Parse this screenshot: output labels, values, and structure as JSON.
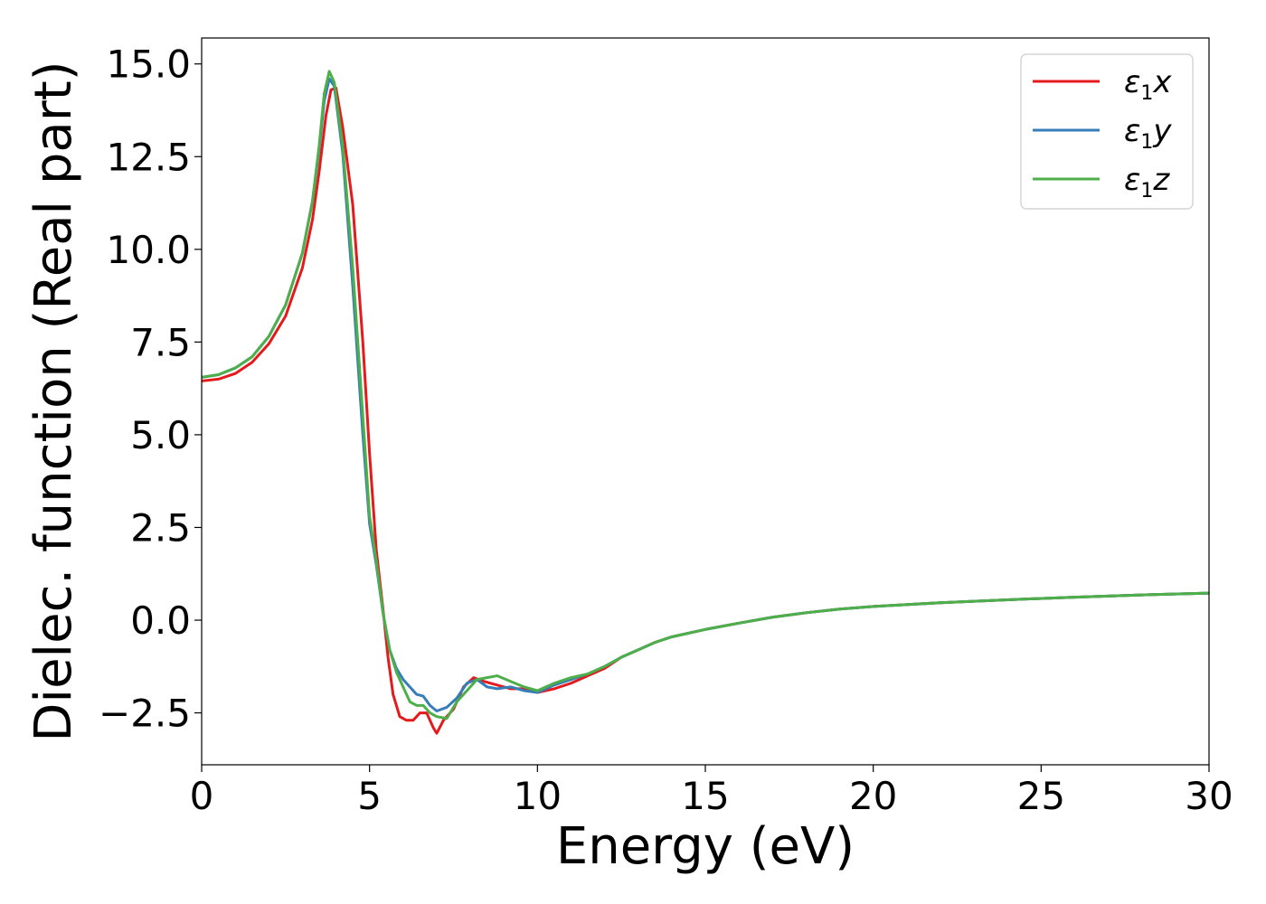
{
  "chart_data": {
    "type": "line",
    "xlabel": "Energy (eV)",
    "ylabel": "Dielec. function (Real part)",
    "xlim": [
      0,
      30
    ],
    "ylim": [
      -3.9,
      15.7
    ],
    "xticks": [
      0,
      5,
      10,
      15,
      20,
      25,
      30
    ],
    "xtick_labels": [
      "0",
      "5",
      "10",
      "15",
      "20",
      "25",
      "30"
    ],
    "yticks": [
      -2.5,
      0.0,
      2.5,
      5.0,
      7.5,
      10.0,
      12.5,
      15.0
    ],
    "ytick_labels": [
      "−2.5",
      "0.0",
      "2.5",
      "5.0",
      "7.5",
      "10.0",
      "12.5",
      "15.0"
    ],
    "grid": false,
    "legend_position": "top-right",
    "series": [
      {
        "name": "ε₁x",
        "legend_main": "ε",
        "legend_sub": "1",
        "legend_var": "x",
        "color": "#e41a1c",
        "points": [
          [
            0,
            6.45
          ],
          [
            0.5,
            6.5
          ],
          [
            1,
            6.65
          ],
          [
            1.5,
            6.95
          ],
          [
            2,
            7.45
          ],
          [
            2.5,
            8.2
          ],
          [
            3,
            9.5
          ],
          [
            3.3,
            10.8
          ],
          [
            3.5,
            12.1
          ],
          [
            3.7,
            13.6
          ],
          [
            3.85,
            14.3
          ],
          [
            4,
            14.35
          ],
          [
            4.2,
            13.3
          ],
          [
            4.5,
            11.2
          ],
          [
            4.8,
            7.5
          ],
          [
            5.0,
            4.5
          ],
          [
            5.2,
            1.9
          ],
          [
            5.4,
            0.3
          ],
          [
            5.55,
            -1.0
          ],
          [
            5.7,
            -2.0
          ],
          [
            5.9,
            -2.6
          ],
          [
            6.1,
            -2.7
          ],
          [
            6.3,
            -2.7
          ],
          [
            6.5,
            -2.5
          ],
          [
            6.7,
            -2.5
          ],
          [
            6.9,
            -2.9
          ],
          [
            7.0,
            -3.05
          ],
          [
            7.2,
            -2.7
          ],
          [
            7.5,
            -2.4
          ],
          [
            7.8,
            -1.8
          ],
          [
            8.1,
            -1.55
          ],
          [
            8.4,
            -1.65
          ],
          [
            8.8,
            -1.75
          ],
          [
            9.2,
            -1.85
          ],
          [
            9.6,
            -1.85
          ],
          [
            10,
            -1.95
          ],
          [
            10.5,
            -1.85
          ],
          [
            11,
            -1.7
          ],
          [
            11.5,
            -1.5
          ],
          [
            12,
            -1.3
          ],
          [
            12.5,
            -1.0
          ],
          [
            13,
            -0.8
          ],
          [
            13.5,
            -0.6
          ],
          [
            14,
            -0.45
          ],
          [
            15,
            -0.25
          ],
          [
            16,
            -0.08
          ],
          [
            17,
            0.08
          ],
          [
            18,
            0.2
          ],
          [
            19,
            0.3
          ],
          [
            20,
            0.37
          ],
          [
            22,
            0.47
          ],
          [
            24,
            0.55
          ],
          [
            26,
            0.62
          ],
          [
            28,
            0.68
          ],
          [
            30,
            0.73
          ]
        ]
      },
      {
        "name": "ε₁y",
        "legend_main": "ε",
        "legend_sub": "1",
        "legend_var": "y",
        "color": "#377eb8",
        "points": [
          [
            0,
            6.55
          ],
          [
            0.5,
            6.62
          ],
          [
            1,
            6.8
          ],
          [
            1.5,
            7.1
          ],
          [
            2,
            7.65
          ],
          [
            2.5,
            8.5
          ],
          [
            3,
            9.9
          ],
          [
            3.3,
            11.3
          ],
          [
            3.5,
            12.7
          ],
          [
            3.65,
            14.0
          ],
          [
            3.8,
            14.6
          ],
          [
            3.95,
            14.4
          ],
          [
            4.2,
            12.6
          ],
          [
            4.5,
            9.0
          ],
          [
            4.8,
            5.0
          ],
          [
            5.0,
            2.6
          ],
          [
            5.2,
            1.5
          ],
          [
            5.4,
            0.2
          ],
          [
            5.6,
            -0.8
          ],
          [
            5.8,
            -1.3
          ],
          [
            6.0,
            -1.6
          ],
          [
            6.2,
            -1.8
          ],
          [
            6.4,
            -2.0
          ],
          [
            6.6,
            -2.05
          ],
          [
            6.8,
            -2.3
          ],
          [
            7.0,
            -2.45
          ],
          [
            7.3,
            -2.35
          ],
          [
            7.6,
            -2.1
          ],
          [
            7.9,
            -1.7
          ],
          [
            8.2,
            -1.6
          ],
          [
            8.5,
            -1.8
          ],
          [
            8.8,
            -1.85
          ],
          [
            9.2,
            -1.8
          ],
          [
            9.6,
            -1.9
          ],
          [
            10,
            -1.95
          ],
          [
            10.5,
            -1.75
          ],
          [
            11,
            -1.6
          ],
          [
            11.5,
            -1.45
          ],
          [
            12,
            -1.25
          ],
          [
            12.5,
            -1.0
          ],
          [
            13,
            -0.8
          ],
          [
            13.5,
            -0.6
          ],
          [
            14,
            -0.45
          ],
          [
            15,
            -0.25
          ],
          [
            16,
            -0.08
          ],
          [
            17,
            0.08
          ],
          [
            18,
            0.2
          ],
          [
            19,
            0.3
          ],
          [
            20,
            0.37
          ],
          [
            22,
            0.47
          ],
          [
            24,
            0.55
          ],
          [
            26,
            0.62
          ],
          [
            28,
            0.68
          ],
          [
            30,
            0.73
          ]
        ]
      },
      {
        "name": "ε₁z",
        "legend_main": "ε",
        "legend_sub": "1",
        "legend_var": "z",
        "color": "#4daf4a",
        "points": [
          [
            0,
            6.55
          ],
          [
            0.5,
            6.62
          ],
          [
            1,
            6.8
          ],
          [
            1.5,
            7.1
          ],
          [
            2,
            7.65
          ],
          [
            2.5,
            8.5
          ],
          [
            3,
            9.9
          ],
          [
            3.3,
            11.3
          ],
          [
            3.5,
            12.8
          ],
          [
            3.65,
            14.2
          ],
          [
            3.8,
            14.8
          ],
          [
            3.95,
            14.5
          ],
          [
            4.2,
            12.8
          ],
          [
            4.5,
            9.5
          ],
          [
            4.8,
            5.5
          ],
          [
            5.0,
            2.8
          ],
          [
            5.2,
            1.6
          ],
          [
            5.4,
            0.2
          ],
          [
            5.6,
            -0.8
          ],
          [
            5.8,
            -1.4
          ],
          [
            6.0,
            -1.8
          ],
          [
            6.2,
            -2.2
          ],
          [
            6.4,
            -2.3
          ],
          [
            6.6,
            -2.3
          ],
          [
            6.8,
            -2.5
          ],
          [
            7.0,
            -2.6
          ],
          [
            7.3,
            -2.65
          ],
          [
            7.6,
            -2.2
          ],
          [
            7.9,
            -1.9
          ],
          [
            8.2,
            -1.6
          ],
          [
            8.5,
            -1.55
          ],
          [
            8.8,
            -1.5
          ],
          [
            9.2,
            -1.65
          ],
          [
            9.6,
            -1.8
          ],
          [
            10,
            -1.9
          ],
          [
            10.5,
            -1.7
          ],
          [
            11,
            -1.55
          ],
          [
            11.5,
            -1.45
          ],
          [
            12,
            -1.25
          ],
          [
            12.5,
            -1.0
          ],
          [
            13,
            -0.8
          ],
          [
            13.5,
            -0.6
          ],
          [
            14,
            -0.45
          ],
          [
            15,
            -0.25
          ],
          [
            16,
            -0.08
          ],
          [
            17,
            0.08
          ],
          [
            18,
            0.2
          ],
          [
            19,
            0.3
          ],
          [
            20,
            0.37
          ],
          [
            22,
            0.47
          ],
          [
            24,
            0.55
          ],
          [
            26,
            0.62
          ],
          [
            28,
            0.68
          ],
          [
            30,
            0.73
          ]
        ]
      }
    ]
  }
}
